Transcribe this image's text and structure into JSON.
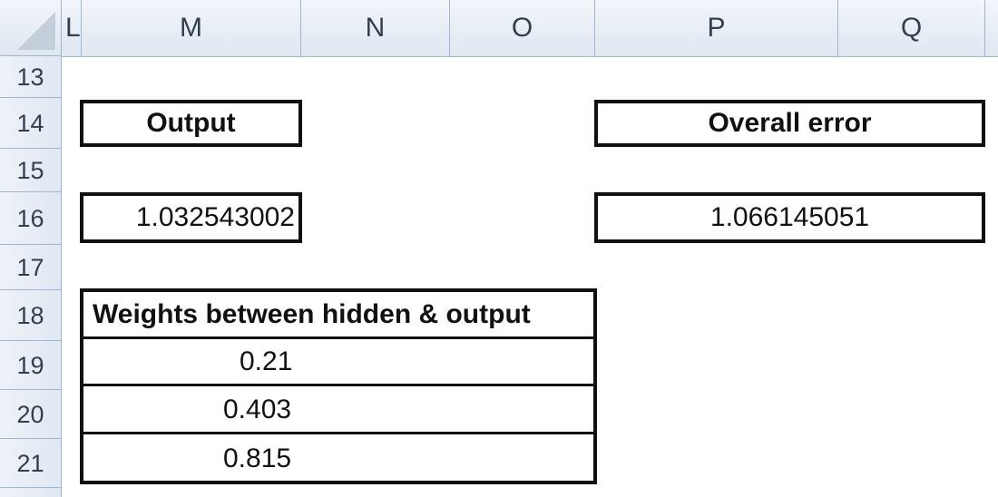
{
  "columns": [
    "L",
    "M",
    "N",
    "O",
    "P",
    "Q"
  ],
  "rows": [
    "13",
    "14",
    "15",
    "16",
    "17",
    "18",
    "19",
    "20",
    "21"
  ],
  "output": {
    "label": "Output",
    "value": "1.032543002"
  },
  "overall_error": {
    "label": "Overall error",
    "value": "1.066145051"
  },
  "weights": {
    "header": "Weights between hidden & output",
    "values": [
      "0.21",
      "0.403",
      "0.815"
    ]
  }
}
